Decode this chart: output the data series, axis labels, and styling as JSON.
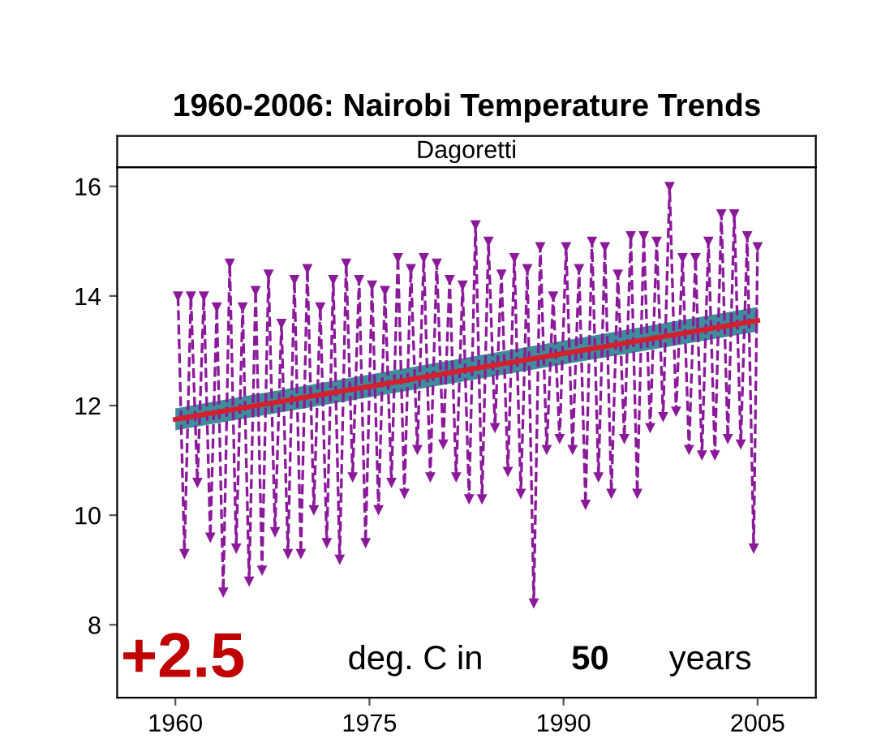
{
  "chart_data": {
    "type": "line",
    "title": "1960-2006: Nairobi Temperature Trends",
    "subtitle": "Dagoretti",
    "annotations": [
      "+2.5",
      "deg. C in",
      "50",
      "years"
    ],
    "xlim": [
      1955.5,
      2009.5
    ],
    "xticks": [
      1960,
      1975,
      1990,
      2005
    ],
    "ylim": [
      6.67,
      16.35
    ],
    "yticks": [
      8,
      10,
      12,
      14,
      16
    ],
    "grid": false,
    "legend": false,
    "series": [
      {
        "color": "#8b1a9b",
        "line_style": "dashed",
        "marker": "triangle",
        "x": [
          1960.2,
          1960.7,
          1961.2,
          1961.7,
          1962.2,
          1962.7,
          1963.2,
          1963.7,
          1964.2,
          1964.7,
          1965.2,
          1965.7,
          1966.2,
          1966.7,
          1967.2,
          1967.7,
          1968.2,
          1968.7,
          1969.2,
          1969.7,
          1970.2,
          1970.7,
          1971.2,
          1971.7,
          1972.2,
          1972.7,
          1973.2,
          1973.7,
          1974.2,
          1974.7,
          1975.2,
          1975.7,
          1976.2,
          1976.7,
          1977.2,
          1977.7,
          1978.2,
          1978.7,
          1979.2,
          1979.7,
          1980.2,
          1980.7,
          1981.2,
          1981.7,
          1982.2,
          1982.7,
          1983.2,
          1983.7,
          1984.2,
          1984.7,
          1985.2,
          1985.7,
          1986.2,
          1986.7,
          1987.2,
          1987.7,
          1988.2,
          1988.7,
          1989.2,
          1989.7,
          1990.2,
          1990.7,
          1991.2,
          1991.7,
          1992.2,
          1992.7,
          1993.2,
          1993.7,
          1994.2,
          1994.7,
          1995.2,
          1995.7,
          1996.2,
          1996.7,
          1997.2,
          1997.7,
          1998.2,
          1998.7,
          1999.2,
          1999.7,
          2000.2,
          2000.7,
          2001.2,
          2001.7,
          2002.2,
          2002.7,
          2003.2,
          2003.7,
          2004.2,
          2004.7,
          2005.0
        ],
        "values": [
          14.0,
          9.3,
          14.0,
          10.6,
          14.0,
          9.6,
          13.8,
          8.6,
          14.6,
          9.4,
          13.8,
          8.8,
          14.1,
          9.0,
          14.4,
          9.7,
          13.5,
          9.3,
          14.3,
          9.3,
          14.5,
          10.1,
          13.8,
          9.5,
          14.3,
          9.2,
          14.6,
          10.7,
          14.3,
          9.5,
          14.2,
          10.1,
          14.1,
          10.6,
          14.7,
          10.4,
          14.5,
          11.2,
          14.7,
          10.7,
          14.6,
          11.3,
          14.3,
          10.7,
          14.2,
          10.3,
          15.3,
          10.3,
          15.0,
          11.6,
          14.4,
          10.8,
          14.7,
          10.4,
          14.5,
          8.4,
          14.9,
          11.2,
          14.0,
          11.4,
          14.9,
          11.2,
          14.5,
          10.2,
          15.0,
          10.7,
          14.9,
          10.4,
          14.4,
          11.4,
          15.1,
          10.4,
          15.1,
          11.6,
          15.0,
          11.8,
          16.0,
          11.9,
          14.7,
          11.2,
          14.7,
          11.1,
          15.0,
          11.1,
          15.5,
          11.4,
          15.5,
          11.3,
          15.1,
          9.4,
          14.9
        ]
      },
      {
        "color": "#d4202c",
        "line_style": "solid",
        "marker": "none",
        "x": [
          1960,
          2005
        ],
        "values": [
          11.75,
          13.55
        ],
        "lower": [
          11.55,
          13.35
        ],
        "upper": [
          11.95,
          13.8
        ]
      }
    ]
  }
}
